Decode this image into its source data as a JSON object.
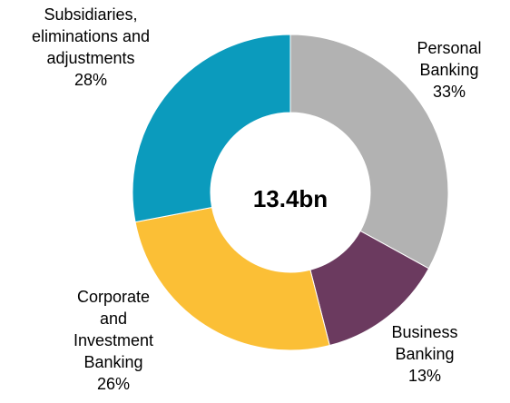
{
  "chart_data": {
    "type": "pie",
    "variant": "donut",
    "center_label": "13.4bn",
    "start_angle_deg": 0,
    "direction": "clockwise",
    "slices": [
      {
        "label_lines": [
          "Personal",
          "Banking"
        ],
        "percent_label": "33%",
        "value": 33,
        "color": "#B2B2B2"
      },
      {
        "label_lines": [
          "Business",
          "Banking"
        ],
        "percent_label": "13%",
        "value": 13,
        "color": "#6B3A5F"
      },
      {
        "label_lines": [
          "Corporate",
          "and",
          "Investment",
          "Banking"
        ],
        "percent_label": "26%",
        "value": 26,
        "color": "#FBBF36"
      },
      {
        "label_lines": [
          "Subsidiaries,",
          "eliminations and",
          "adjustments"
        ],
        "percent_label": "28%",
        "value": 28,
        "color": "#0B9BBD"
      }
    ]
  }
}
